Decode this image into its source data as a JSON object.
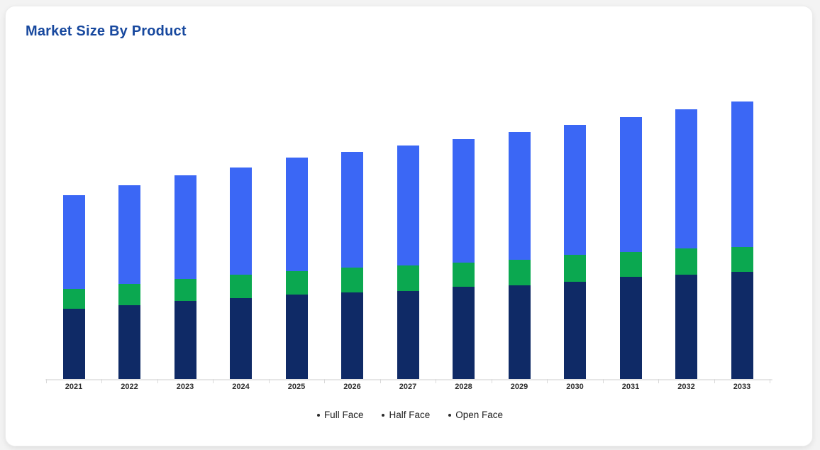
{
  "chart_data": {
    "type": "bar",
    "stacked": true,
    "title": "Market Size By Product",
    "categories": [
      "2021",
      "2022",
      "2023",
      "2024",
      "2025",
      "2026",
      "2027",
      "2028",
      "2029",
      "2030",
      "2031",
      "2032",
      "2033"
    ],
    "series": [
      {
        "name": "Full Face",
        "color": "#0f2a66",
        "values": [
          99,
          104,
          110,
          114,
          119,
          122,
          124,
          130,
          132,
          137,
          144,
          147,
          151
        ]
      },
      {
        "name": "Half Face",
        "color": "#0ba850",
        "values": [
          28,
          30,
          31,
          33,
          33,
          35,
          36,
          34,
          36,
          38,
          35,
          37,
          35
        ]
      },
      {
        "name": "Open Face",
        "color": "#3b67f5",
        "values": [
          132,
          139,
          146,
          151,
          160,
          163,
          169,
          174,
          180,
          183,
          190,
          196,
          205
        ]
      }
    ],
    "xlabel": "",
    "ylabel": "",
    "ylim": [
      0,
      420
    ],
    "grid": false,
    "y_axis_visible": false,
    "legend_position": "bottom"
  },
  "legend": {
    "bullet": "•"
  },
  "colors": {
    "title_text": "#17489e",
    "axis_line": "#e6e6e6",
    "tick": "#d9d9d9",
    "x_label_text": "#2e2e2e",
    "legend_text": "#1d1d1d",
    "legend_dot": "#2a2a2a",
    "card_background": "#ffffff",
    "page_background": "#f3f3f3"
  }
}
